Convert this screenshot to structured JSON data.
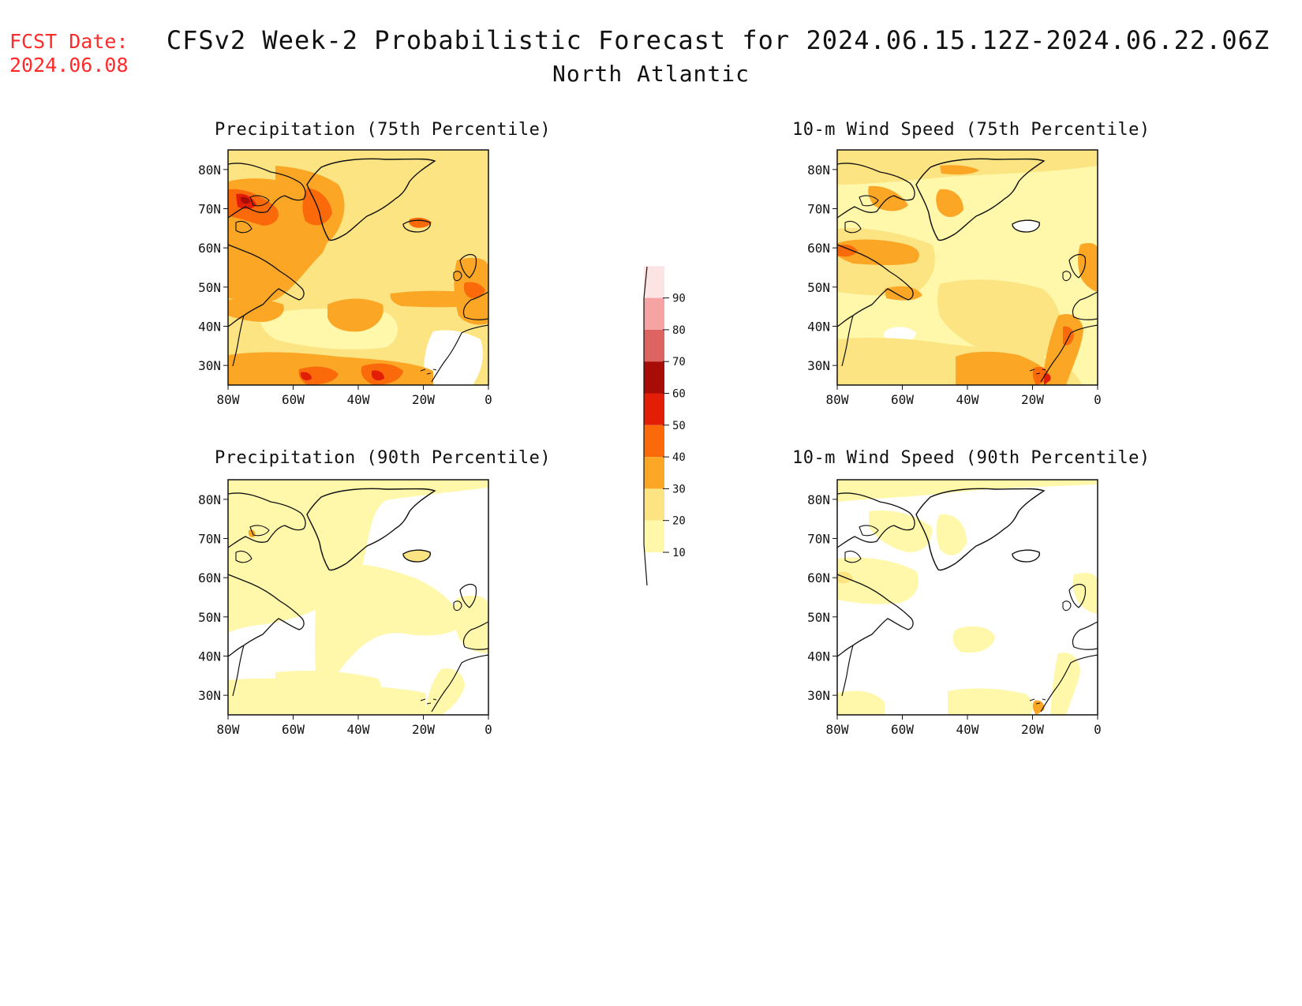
{
  "forecast_date": {
    "label": "FCST Date:",
    "value": "2024.06.08"
  },
  "title": "CFSv2 Week-2 Probabilistic Forecast for 2024.06.15.12Z-2024.06.22.06Z",
  "subtitle": "North Atlantic",
  "panels": [
    {
      "title": "Precipitation (75th Percentile)"
    },
    {
      "title": "10-m Wind Speed (75th Percentile)"
    },
    {
      "title": "Precipitation (90th Percentile)"
    },
    {
      "title": "10-m Wind Speed (90th Percentile)"
    }
  ],
  "map_axes": {
    "lat_ticks": [
      "80N",
      "70N",
      "60N",
      "50N",
      "40N",
      "30N"
    ],
    "lon_ticks": [
      "80W",
      "60W",
      "40W",
      "20W",
      "0"
    ]
  },
  "colorbar": {
    "levels": [
      "10",
      "20",
      "30",
      "40",
      "50",
      "60",
      "70",
      "80",
      "90"
    ],
    "colors": [
      "#fff7aa",
      "#fde482",
      "#fca626",
      "#fa6a0a",
      "#e21e07",
      "#a70c06",
      "#dd6460",
      "#f6a3a3",
      "#fde4e4"
    ]
  },
  "colors": {
    "fcst_date": "#ff2a2a",
    "coastline": "#111111",
    "no_signal": "#ffffff"
  }
}
